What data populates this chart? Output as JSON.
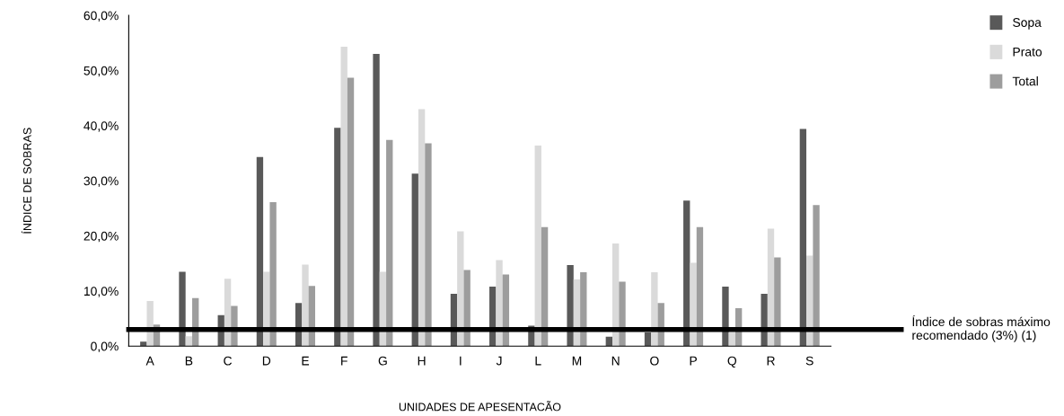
{
  "chart_data": {
    "type": "bar",
    "xlabel": "UNIDADES DE APESENTACÃO",
    "ylabel": "ÍNDICE DE SOBRAS",
    "categories": [
      "A",
      "B",
      "C",
      "D",
      "E",
      "F",
      "G",
      "H",
      "I",
      "J",
      "L",
      "M",
      "N",
      "O",
      "P",
      "Q",
      "R",
      "S"
    ],
    "series": [
      {
        "name": "Sopa",
        "color": "#595959",
        "values": [
          0.8,
          13.5,
          5.6,
          34.3,
          7.8,
          39.6,
          53.0,
          31.3,
          9.5,
          10.8,
          3.7,
          14.7,
          1.7,
          2.5,
          26.4,
          10.8,
          9.5,
          39.4
        ]
      },
      {
        "name": "Prato",
        "color": "#dadada",
        "values": [
          8.2,
          1.8,
          12.2,
          13.5,
          14.8,
          54.3,
          13.5,
          43.0,
          20.8,
          15.6,
          36.4,
          12.1,
          18.6,
          13.4,
          15.1,
          2.5,
          21.3,
          16.4
        ]
      },
      {
        "name": "Total",
        "color": "#9d9d9d",
        "values": [
          3.9,
          8.7,
          7.3,
          26.1,
          10.9,
          48.7,
          37.4,
          36.8,
          13.8,
          13.0,
          21.6,
          13.4,
          11.7,
          7.8,
          21.6,
          6.9,
          16.1,
          25.6
        ]
      }
    ],
    "ylim": [
      0,
      60
    ],
    "yticks": [
      {
        "value": 0,
        "label": "0,0%"
      },
      {
        "value": 10,
        "label": "10,0%"
      },
      {
        "value": 20,
        "label": "20,0%"
      },
      {
        "value": 30,
        "label": "30,0%"
      },
      {
        "value": 40,
        "label": "40,0%"
      },
      {
        "value": 50,
        "label": "50,0%"
      },
      {
        "value": 60,
        "label": "60,0%"
      }
    ],
    "ref_lines": [
      {
        "axis": "y",
        "value": 3,
        "label": "Índice de sobras máximo\nrecomendado (3%) (1)",
        "color": "#000000"
      }
    ],
    "grid": false,
    "legend": "top right"
  }
}
